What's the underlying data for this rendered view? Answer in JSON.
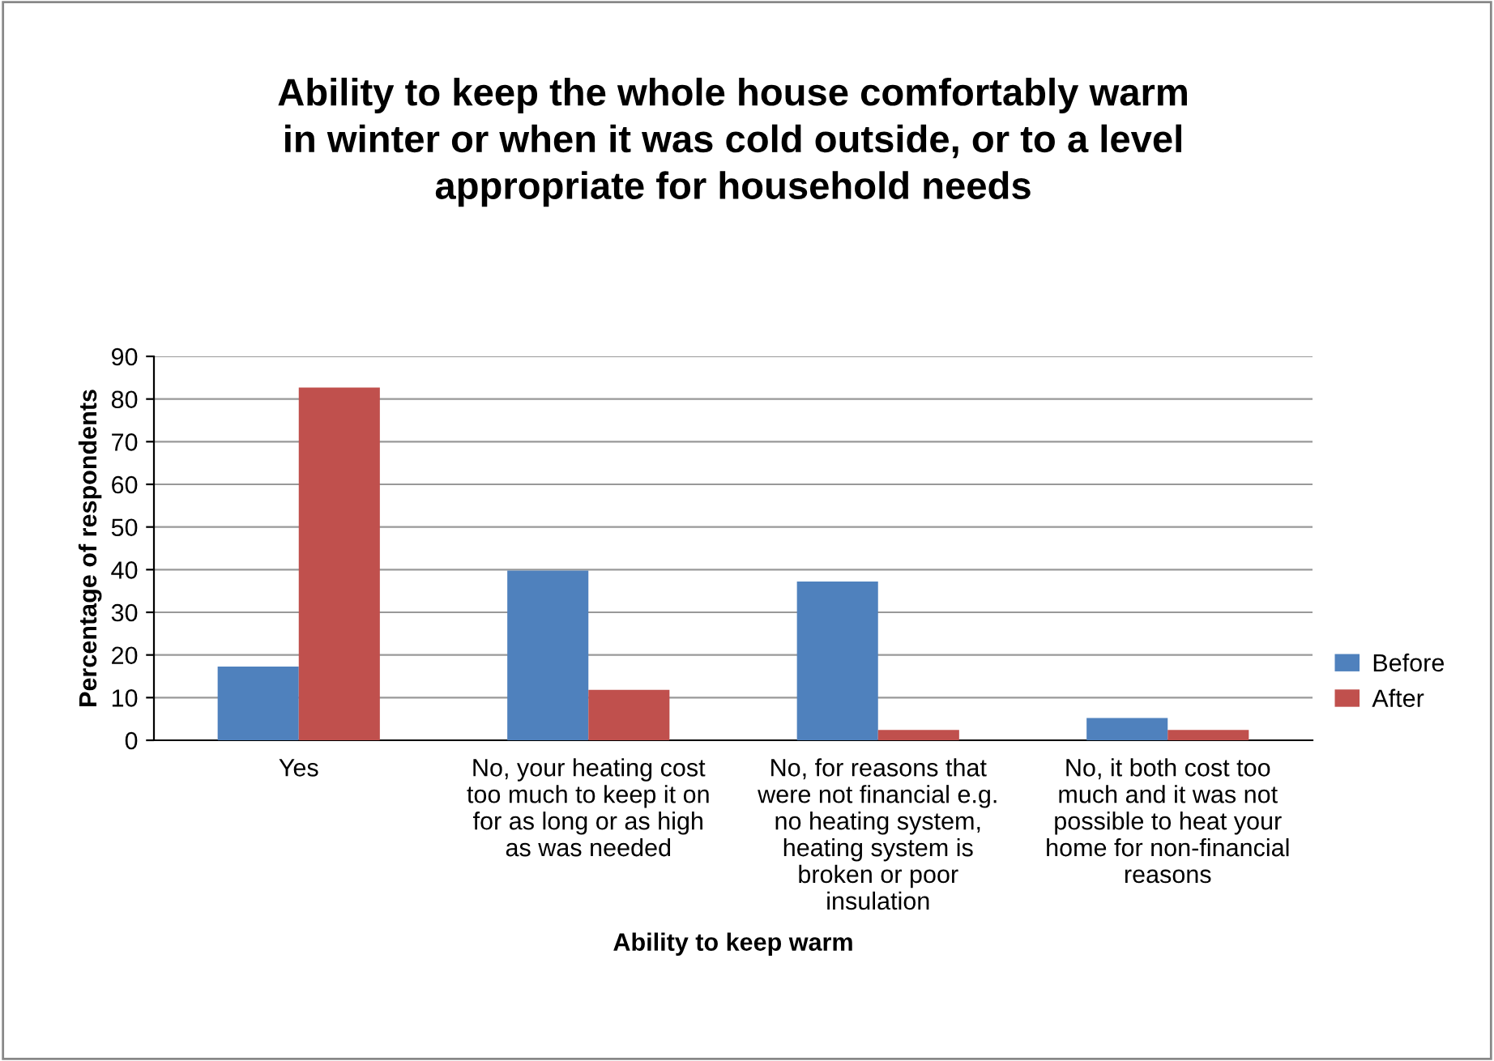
{
  "chart_data": {
    "type": "bar",
    "title": "Ability to keep the whole house comfortably warm\nin winter or when it was cold outside, or to a level\nappropriate for household needs",
    "xlabel": "Ability to keep warm",
    "ylabel": "Percentage of respondents",
    "categories": [
      "Yes",
      "No, your heating cost\ntoo much to keep it on\nfor as long or as high\nas was needed",
      "No, for reasons that\nwere not financial e.g.\nno heating system,\nheating system is\nbroken or poor\ninsulation",
      "No, it both cost too\nmuch and it was not\npossible to heat your\nhome for non-financial\nreasons"
    ],
    "series": [
      {
        "name": "Before",
        "color": "#4f81bd",
        "values": [
          17.3,
          39.8,
          37.2,
          5.2
        ]
      },
      {
        "name": "After",
        "color": "#c0504d",
        "values": [
          82.7,
          11.8,
          2.4,
          2.4
        ]
      }
    ],
    "ylim": [
      0,
      90
    ],
    "yticks": [
      0,
      10,
      20,
      30,
      40,
      50,
      60,
      70,
      80,
      90
    ],
    "grid": "y",
    "legend": "right"
  }
}
